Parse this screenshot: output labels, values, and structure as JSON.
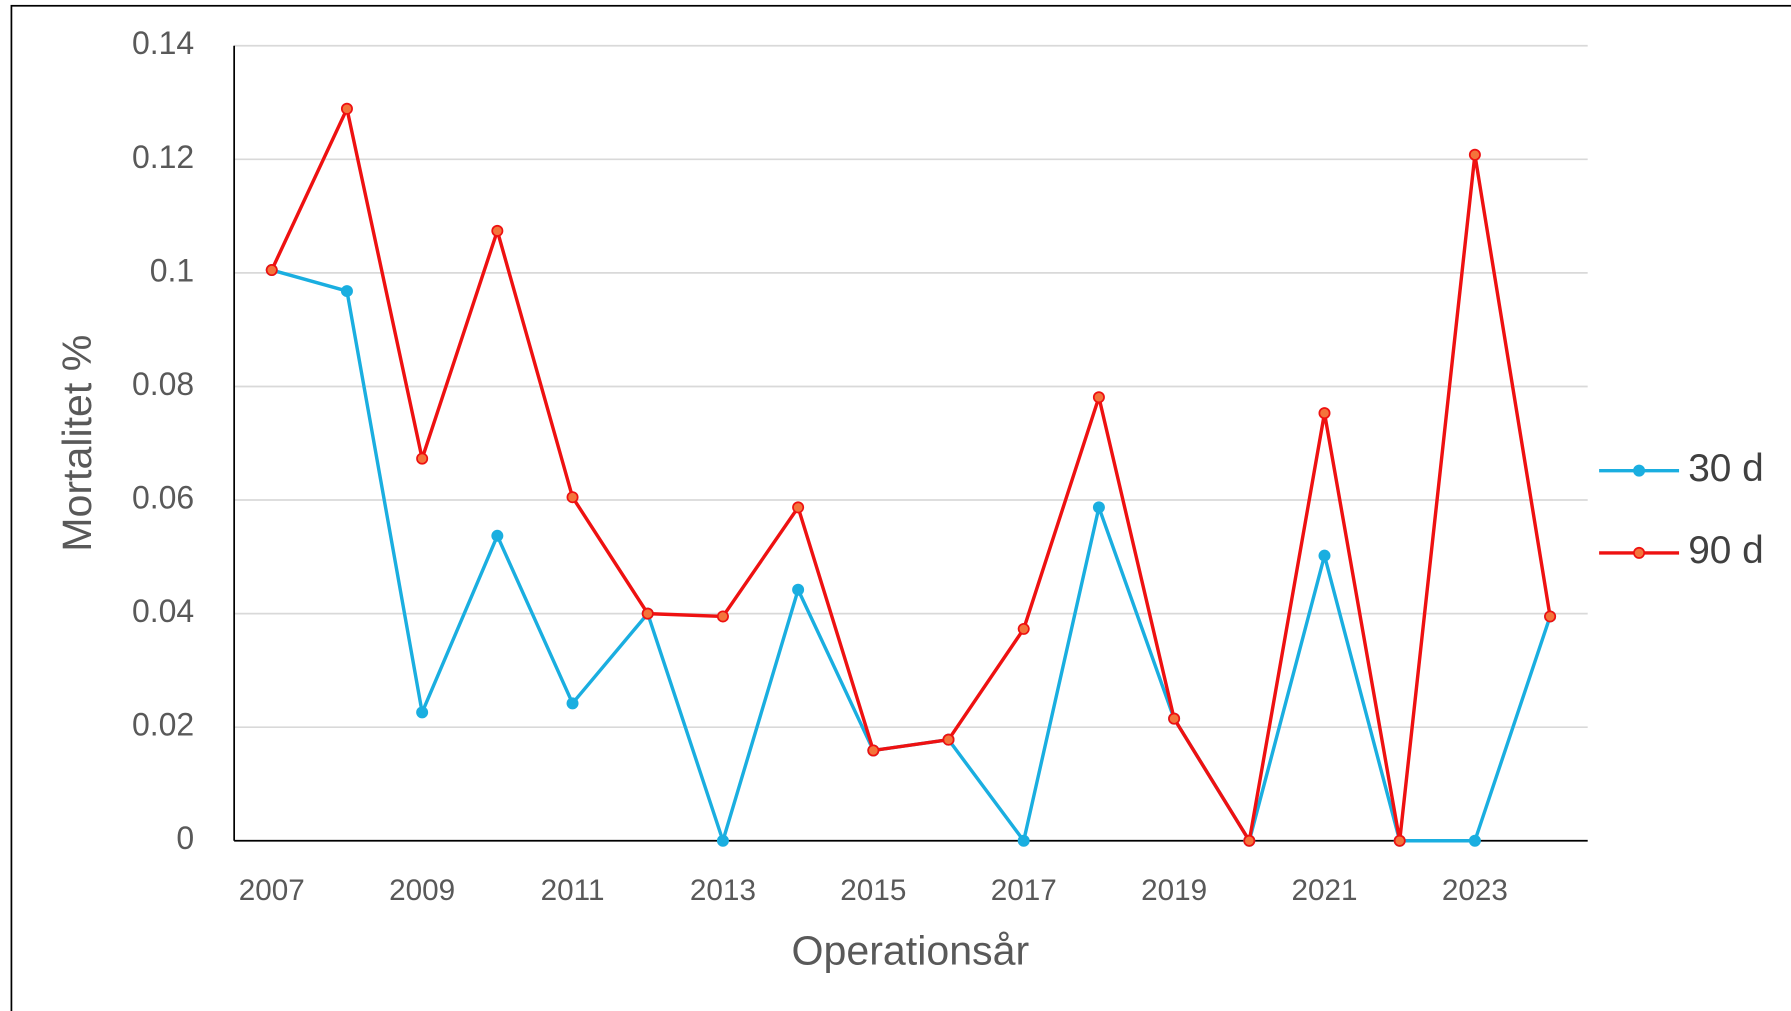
{
  "chart_data": {
    "type": "line",
    "xlabel": "Operationsår",
    "ylabel": "Mortalitet %",
    "categories": [
      "2007",
      null,
      "2009",
      null,
      "2011",
      null,
      "2013",
      null,
      "2015",
      null,
      "2017",
      null,
      "2019",
      null,
      "2021",
      null,
      "2023",
      null
    ],
    "series": [
      {
        "name": "30 d",
        "color": "#1aaee0",
        "values": [
          0.1005,
          0.0968,
          0.0226,
          0.0537,
          0.0242,
          0.04,
          0,
          0.0442,
          0.0159,
          0.0178,
          0,
          0.0587,
          0.0215,
          0,
          0.0502,
          0,
          0,
          0.0395
        ]
      },
      {
        "name": "90 d",
        "color": "#ee1111",
        "values": [
          0.1005,
          0.1289,
          0.0673,
          0.1074,
          0.0605,
          0.04,
          0.0395,
          0.0587,
          0.0159,
          0.0178,
          0.0373,
          0.0781,
          0.0215,
          0,
          0.0753,
          0,
          0.1208,
          0.0395
        ]
      }
    ],
    "ylim": [
      0,
      0.14
    ],
    "yticks": [
      0,
      0.02,
      0.04,
      0.06,
      0.08,
      0.1,
      0.12,
      0.14
    ],
    "grid": true,
    "legend": "right"
  }
}
